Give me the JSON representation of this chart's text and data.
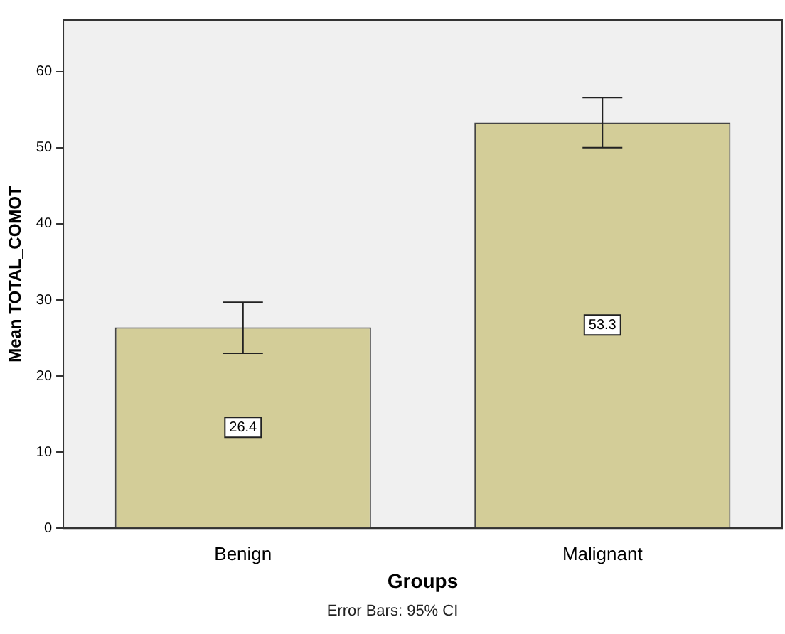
{
  "chart_data": {
    "type": "bar",
    "xlabel": "Groups",
    "ylabel": "Mean TOTAL_COMOT",
    "categories": [
      "Benign",
      "Malignant"
    ],
    "values": [
      26.4,
      53.3
    ],
    "errors": [
      [
        23.0,
        29.7
      ],
      [
        50.0,
        56.6
      ]
    ],
    "color": "#d3cd98",
    "ylim": [
      0,
      66.8
    ],
    "yticks": [
      0,
      10,
      20,
      30,
      40,
      50,
      60
    ],
    "grid": false,
    "data_labels": true,
    "annotations": [
      "Error Bars: 95% CI"
    ]
  }
}
